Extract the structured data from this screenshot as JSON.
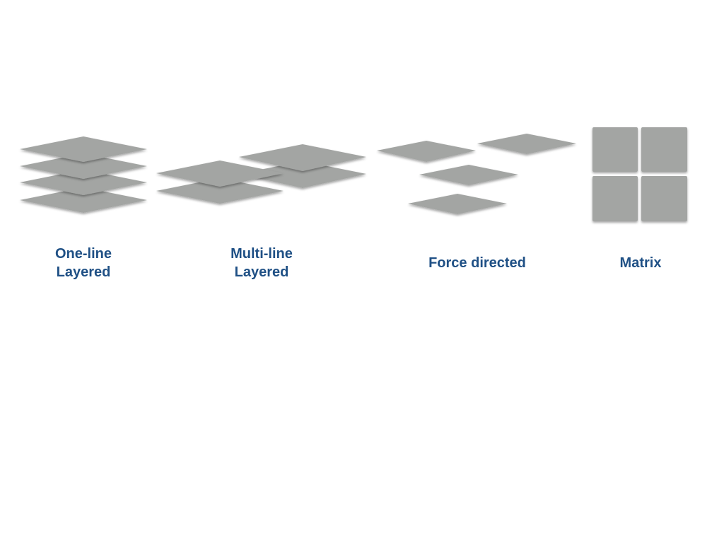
{
  "colors": {
    "tile_fill": "#a3a5a3",
    "caption_text": "#1f5085",
    "background": "#ffffff"
  },
  "layouts": [
    {
      "id": "one-line-layered",
      "label_lines": [
        "One-line",
        "Layered"
      ],
      "icon": "stacked-layers-icon"
    },
    {
      "id": "multi-line-layered",
      "label_lines": [
        "Multi-line",
        "Layered"
      ],
      "icon": "two-stacks-layers-icon"
    },
    {
      "id": "force-directed",
      "label_lines": [
        "Force directed"
      ],
      "icon": "scattered-planes-icon"
    },
    {
      "id": "matrix",
      "label_lines": [
        "Matrix"
      ],
      "icon": "grid-squares-icon"
    }
  ]
}
